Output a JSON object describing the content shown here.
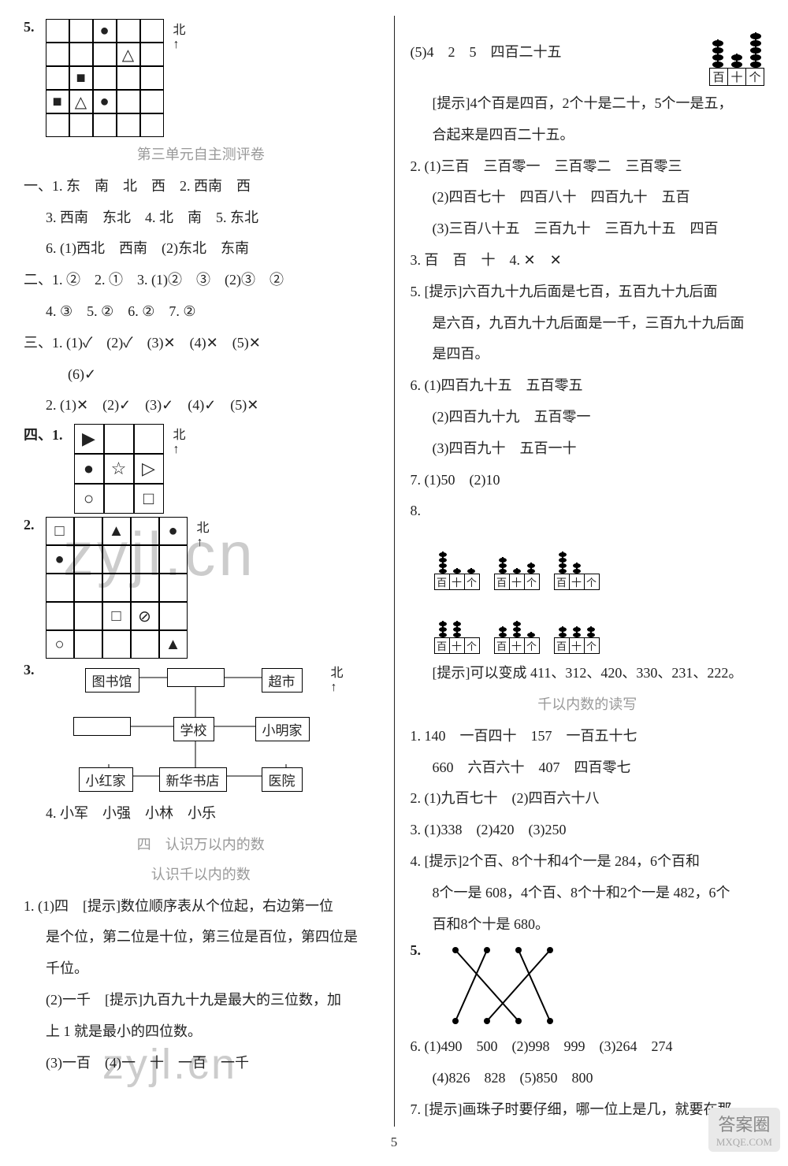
{
  "q5_grid": {
    "north_label": "北",
    "symbols": {
      "0_2": "●",
      "1_3": "△",
      "2_1": "■",
      "3_0": "■",
      "3_1": "△",
      "3_2": "●"
    }
  },
  "section_unit3_title": "第三单元自主测评卷",
  "unit3": {
    "p1": "一、1. 东　南　北　西　2. 西南　西",
    "p2": "3. 西南　东北　4. 北　南　5. 东北",
    "p3": "6. (1)西北　西南　(2)东北　东南",
    "p4": "二、1. ②　2. ①　3. (1)②　③　(2)③　②",
    "p5": "4. ③　5. ②　6. ②　7. ②",
    "p6": "三、1. (1)✓　(2)✓　(3)✕　(4)✕　(5)✕",
    "p7": "(6)✓",
    "p8": "2. (1)✕　(2)✓　(3)✓　(4)✓　(5)✕"
  },
  "four1": {
    "label": "四、1.",
    "north": "北",
    "symbols": {
      "0_0": "▶",
      "1_0": "●",
      "1_1": "☆",
      "1_2": "▷",
      "2_0": "○",
      "2_2": "□"
    }
  },
  "four2": {
    "label": "2.",
    "north": "北",
    "symbols": {
      "0_0": "□",
      "0_2": "▲",
      "0_4": "●",
      "1_0": "●",
      "3_2": "□",
      "3_3": "⊘",
      "4_0": "○",
      "4_4": "▲"
    }
  },
  "four3": {
    "label": "3.",
    "north": "北",
    "boxes": {
      "library": "图书馆",
      "supermarket": "超市",
      "school": "学校",
      "xiaoming": "小明家",
      "xiaohong": "小红家",
      "bookstore": "新华书店",
      "hospital": "医院"
    }
  },
  "four4": "4. 小军　小强　小林　小乐",
  "unit4_title": "四　认识万以内的数",
  "unit4_sub1": "认识千以内的数",
  "unit4_q1_1": "1. (1)四　[提示]数位顺序表从个位起，右边第一位",
  "unit4_q1_2": "是个位，第二位是十位，第三位是百位，第四位是",
  "unit4_q1_3": "千位。",
  "unit4_q1_4": "(2)一千　[提示]九百九十九是最大的三位数，加",
  "unit4_q1_5": "上 1 就是最小的四位数。",
  "unit4_q1_6": "(3)一百　(4)一　十　一百　一千",
  "r_q5_text": "(5)4　2　5　四百二十五",
  "r_abacus_425": {
    "hundreds": 4,
    "tens": 2,
    "ones": 5,
    "labels": [
      "百",
      "十",
      "个"
    ]
  },
  "r_hint1a": "[提示]4个百是四百，2个十是二十，5个一是五，",
  "r_hint1b": "合起来是四百二十五。",
  "r_q2_1": "2. (1)三百　三百零一　三百零二　三百零三",
  "r_q2_2": "(2)四百七十　四百八十　四百九十　五百",
  "r_q2_3": "(3)三百八十五　三百九十　三百九十五　四百",
  "r_q3": "3. 百　百　十　4. ✕　✕",
  "r_q5a": "5. [提示]六百九十九后面是七百，五百九十九后面",
  "r_q5b": "是六百，九百九十九后面是一千，三百九十九后面",
  "r_q5c": "是四百。",
  "r_q6_1": "6. (1)四百九十五　五百零五",
  "r_q6_2": "(2)四百九十九　五百零一",
  "r_q6_3": "(3)四百九十　五百一十",
  "r_q7": "7. (1)50　(2)10",
  "r_q8_label": "8.",
  "r_q8_abaci": [
    {
      "h": 4,
      "t": 1,
      "o": 1
    },
    {
      "h": 3,
      "t": 1,
      "o": 2
    },
    {
      "h": 4,
      "t": 2,
      "o": 0
    },
    {
      "h": 3,
      "t": 3,
      "o": 0
    },
    {
      "h": 2,
      "t": 3,
      "o": 1
    },
    {
      "h": 2,
      "t": 2,
      "o": 2
    }
  ],
  "r_q8_labels": [
    "百",
    "十",
    "个"
  ],
  "r_q8_hint": "[提示]可以变成 411、312、420、330、231、222。",
  "r_sub2_title": "千以内数的读写",
  "r2_q1a": "1. 140　一百四十　157　一百五十七",
  "r2_q1b": "660　六百六十　407　四百零七",
  "r2_q2": "2. (1)九百七十　(2)四百六十八",
  "r2_q3": "3. (1)338　(2)420　(3)250",
  "r2_q4a": "4. [提示]2个百、8个十和4个一是 284，6个百和",
  "r2_q4b": "8个一是 608，4个百、8个十和2个一是 482，6个",
  "r2_q4c": "百和8个十是 680。",
  "r2_q5_label": "5.",
  "r2_q6a": "6. (1)490　500　(2)998　999　(3)264　274",
  "r2_q6b": "(4)826　828　(5)850　800",
  "r2_q7": "7. [提示]画珠子时要仔细，哪一位上是几，就要在那",
  "page_number": "5",
  "badge_top": "答案圈",
  "badge_bottom": "MXQE.COM"
}
